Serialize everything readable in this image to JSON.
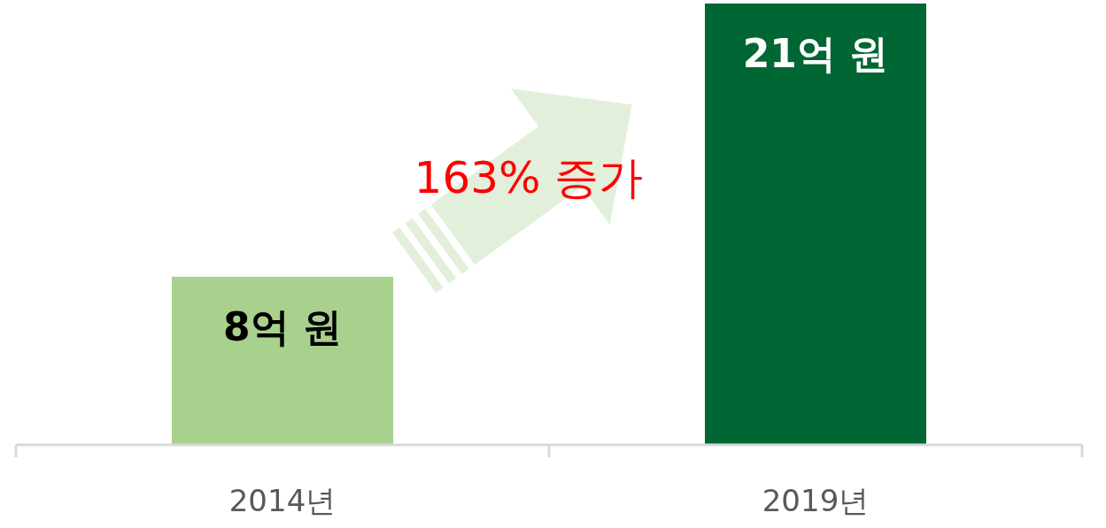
{
  "chart_data": {
    "type": "bar",
    "categories": [
      "2014년",
      "2019년"
    ],
    "values": [
      8,
      21
    ],
    "colors": [
      "#a9d18e",
      "#006633"
    ],
    "value_labels": [
      "8억 원",
      "21억 원"
    ],
    "annotations": [
      "163% 증가"
    ]
  }
}
